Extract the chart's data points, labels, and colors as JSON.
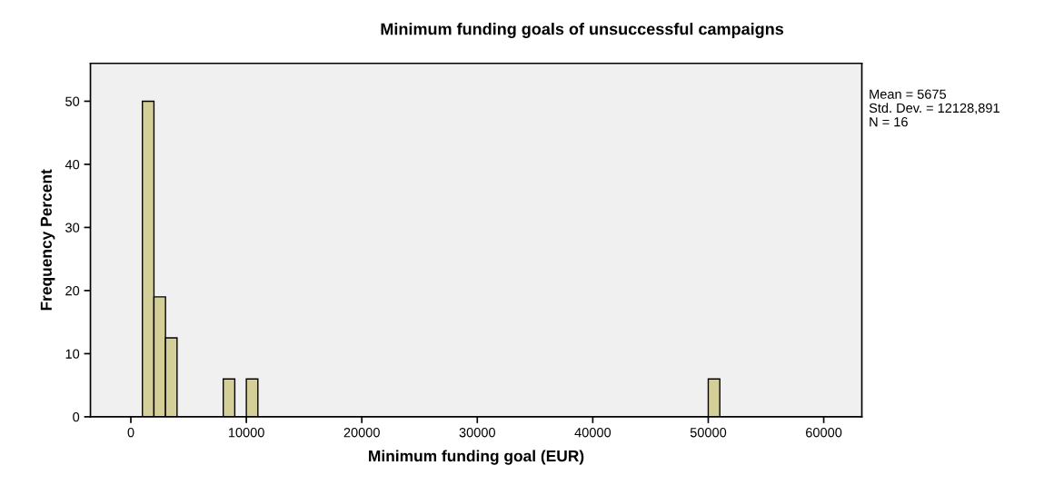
{
  "chart_data": {
    "type": "histogram",
    "title": "Minimum funding goals of unsuccessful campaigns",
    "xlabel": "Minimum funding goal (EUR)",
    "ylabel": "Frequency Percent",
    "bins": [
      1000,
      2000,
      3000,
      4000,
      8000,
      9000,
      10000,
      11000,
      50000,
      51000
    ],
    "values": [
      50,
      19,
      12.5,
      0,
      6,
      0,
      6,
      0,
      6
    ],
    "color": "#d4cf98",
    "xlim": [
      -3500,
      63300
    ],
    "xticks": [
      0,
      10000,
      20000,
      30000,
      40000,
      50000,
      60000
    ],
    "ylim": [
      0,
      56
    ],
    "yticks": [
      0,
      10,
      20,
      30,
      40,
      50
    ],
    "annotations": [
      "Mean = 5675",
      "Std. Dev. = 12128,891",
      "N = 16"
    ],
    "grid": false,
    "legend": false
  }
}
